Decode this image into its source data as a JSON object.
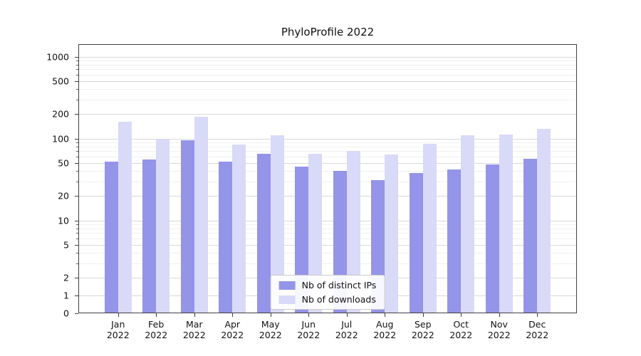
{
  "title": "PhyloProfile 2022",
  "chart_data": {
    "type": "bar",
    "title": "PhyloProfile 2022",
    "categories": [
      "Jan 2022",
      "Feb 2022",
      "Mar 2022",
      "Apr 2022",
      "May 2022",
      "Jun 2022",
      "Jul 2022",
      "Aug 2022",
      "Sep 2022",
      "Oct 2022",
      "Nov 2022",
      "Dec 2022"
    ],
    "series": [
      {
        "name": "Nb of distinct IPs",
        "color": "#9494e8",
        "values": [
          52,
          56,
          95,
          52,
          65,
          45,
          40,
          31,
          38,
          42,
          48,
          57
        ]
      },
      {
        "name": "Nb of downloads",
        "color": "#d9d9f8",
        "values": [
          160,
          100,
          185,
          85,
          110,
          65,
          71,
          64,
          87,
          110,
          112,
          131
        ]
      }
    ],
    "xlabel": "",
    "ylabel": "",
    "yscale": "symlog",
    "y_ticks": [
      0,
      1,
      2,
      5,
      10,
      20,
      50,
      100,
      200,
      500,
      1000
    ],
    "ylim": [
      0,
      1300
    ],
    "grid": true,
    "legend_position": "lower center"
  }
}
